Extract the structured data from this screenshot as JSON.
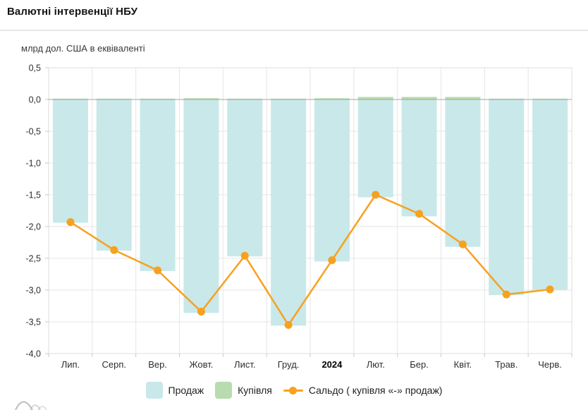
{
  "header": {
    "title": "Валютні інтервенції НБУ"
  },
  "chart": {
    "unit_label": "млрд дол. США в еквіваленті"
  },
  "legend": {
    "sale_label": "Продаж",
    "purchase_label": "Купівля",
    "saldo_label": "Сальдо ( купівля «-» продаж)"
  },
  "colors": {
    "sale": "#c9e8e9",
    "purchase": "#b7dcae",
    "saldo": "#F7A11F",
    "grid": "#e6e6e6",
    "axis_border": "#dcdcdc",
    "zero_line": "#a3a3a3",
    "tick": "#c9c9c9",
    "label": "#2d2d2d",
    "watermark": "#bdbdbd"
  },
  "chart_data": {
    "type": "bar",
    "subtype": "bar+line combo",
    "title": "Валютні інтервенції НБУ",
    "ylabel": "млрд дол. США в еквіваленті",
    "categories": [
      "Лип.",
      "Серп.",
      "Вер.",
      "Жовт.",
      "Лист.",
      "Груд.",
      "2024",
      "Лют.",
      "Бер.",
      "Квіт.",
      "Трав.",
      "Черв."
    ],
    "bold_category": "2024",
    "series": [
      {
        "name": "Продаж",
        "type": "bar",
        "values": [
          -1.94,
          -2.38,
          -2.7,
          -3.36,
          -2.47,
          -3.56,
          -2.55,
          -1.54,
          -1.84,
          -2.32,
          -3.08,
          -3.0
        ]
      },
      {
        "name": "Купівля",
        "type": "bar",
        "values": [
          0.01,
          0.01,
          0.01,
          0.02,
          0.01,
          0.01,
          0.02,
          0.04,
          0.04,
          0.04,
          0.01,
          0.01
        ]
      },
      {
        "name": "Сальдо ( купівля «-» продаж)",
        "type": "line",
        "values": [
          -1.93,
          -2.37,
          -2.69,
          -3.34,
          -2.46,
          -3.55,
          -2.53,
          -1.5,
          -1.8,
          -2.28,
          -3.07,
          -2.99
        ]
      }
    ],
    "ylim": [
      -4.0,
      0.5
    ],
    "ytick_step": 0.5,
    "decimal_separator": ",",
    "grid": true,
    "legend_position": "bottom"
  }
}
